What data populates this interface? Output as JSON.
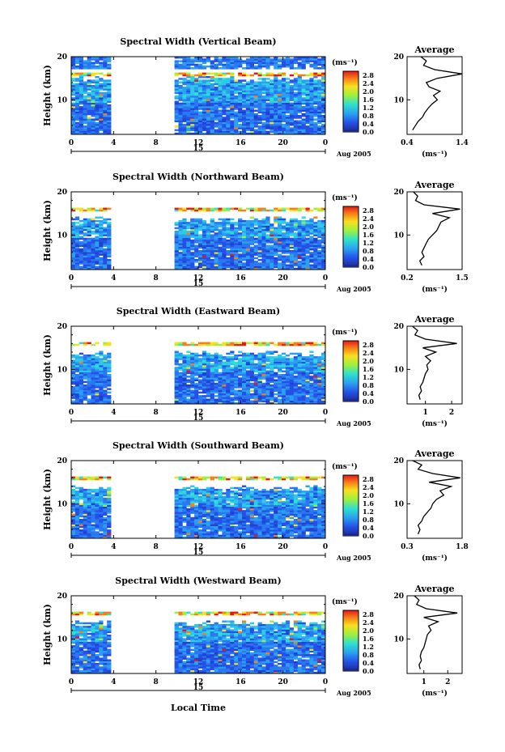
{
  "figure": {
    "bottom_label": "Local Time",
    "day_label": "15",
    "month_label": "Aug 2005",
    "colorbar_unit": "(ms⁻¹)",
    "avg_title": "Average",
    "avg_xlabel": "(ms⁻¹)",
    "ylabel": "Height (km)"
  },
  "chart_data": [
    {
      "type": "heatmap",
      "title": "Spectral Width (Vertical Beam)",
      "xlabel": "Local Time",
      "ylabel": "Height (km)",
      "xlim": [
        0,
        24
      ],
      "x_ticks": [
        "0",
        "4",
        "8",
        "12",
        "16",
        "20",
        "0"
      ],
      "ylim": [
        2,
        20
      ],
      "y_ticks": [
        "10",
        "20"
      ],
      "data_gap_hours": [
        4,
        9.5
      ],
      "colorbar": {
        "unit": "(ms⁻¹)",
        "range": [
          0,
          3.0
        ],
        "ticks": [
          "0.0",
          "0.4",
          "0.8",
          "1.2",
          "1.6",
          "2.0",
          "2.4",
          "2.8"
        ]
      },
      "average_profile": {
        "title": "Average",
        "xlabel": "(ms⁻¹)",
        "x_ticks": [
          "0.4",
          "1.4"
        ],
        "xlim": [
          0.4,
          1.4
        ],
        "heights": [
          3,
          4,
          5,
          6,
          7,
          8,
          9,
          10,
          11,
          12,
          13,
          14,
          15,
          16,
          17,
          18,
          19,
          20
        ],
        "values": [
          0.5,
          0.55,
          0.6,
          0.68,
          0.72,
          0.78,
          0.85,
          0.95,
          0.88,
          1.0,
          0.8,
          0.75,
          0.95,
          1.4,
          0.9,
          0.7,
          0.75,
          0.65
        ]
      }
    },
    {
      "type": "heatmap",
      "title": "Spectral Width (Northward Beam)",
      "xlabel": "Local Time",
      "ylabel": "Height (km)",
      "xlim": [
        0,
        24
      ],
      "x_ticks": [
        "0",
        "4",
        "8",
        "12",
        "16",
        "20",
        "0"
      ],
      "ylim": [
        2,
        20
      ],
      "y_ticks": [
        "10",
        "20"
      ],
      "data_gap_hours": [
        4,
        9.5
      ],
      "colorbar": {
        "unit": "(ms⁻¹)",
        "range": [
          0,
          3.0
        ],
        "ticks": [
          "0.0",
          "0.4",
          "0.8",
          "1.2",
          "1.6",
          "2.0",
          "2.4",
          "2.8"
        ]
      },
      "average_profile": {
        "title": "Average",
        "xlabel": "(ms⁻¹)",
        "x_ticks": [
          "0.2",
          "1.5"
        ],
        "xlim": [
          0.2,
          1.5
        ],
        "heights": [
          3,
          4,
          5,
          6,
          7,
          8,
          9,
          10,
          11,
          12,
          13,
          14,
          15,
          16,
          17,
          18,
          19,
          20
        ],
        "values": [
          0.55,
          0.5,
          0.6,
          0.55,
          0.6,
          0.65,
          0.7,
          0.8,
          0.9,
          0.95,
          1.0,
          1.2,
          0.8,
          1.45,
          0.6,
          0.4,
          0.45,
          0.35
        ]
      }
    },
    {
      "type": "heatmap",
      "title": "Spectral Width (Eastward Beam)",
      "xlabel": "Local Time",
      "ylabel": "Height (km)",
      "xlim": [
        0,
        24
      ],
      "x_ticks": [
        "0",
        "4",
        "8",
        "12",
        "16",
        "20",
        "0"
      ],
      "ylim": [
        2,
        20
      ],
      "y_ticks": [
        "10",
        "20"
      ],
      "data_gap_hours": [
        4,
        9.5
      ],
      "colorbar": {
        "unit": "(ms⁻¹)",
        "range": [
          0,
          3.0
        ],
        "ticks": [
          "0.0",
          "0.4",
          "0.8",
          "1.2",
          "1.6",
          "2.0",
          "2.4",
          "2.8"
        ]
      },
      "average_profile": {
        "title": "Average",
        "xlabel": "(ms⁻¹)",
        "x_ticks": [
          "1",
          "2"
        ],
        "xlim": [
          0.3,
          2.4
        ],
        "heights": [
          3,
          4,
          5,
          6,
          7,
          8,
          9,
          10,
          11,
          12,
          13,
          14,
          15,
          16,
          17,
          18,
          19,
          20
        ],
        "values": [
          0.8,
          0.75,
          0.85,
          0.8,
          0.9,
          0.95,
          1.0,
          1.1,
          1.05,
          1.2,
          1.0,
          1.4,
          0.9,
          2.2,
          1.0,
          0.6,
          0.7,
          0.5
        ]
      }
    },
    {
      "type": "heatmap",
      "title": "Spectral Width (Southward Beam)",
      "xlabel": "Local Time",
      "ylabel": "Height (km)",
      "xlim": [
        0,
        24
      ],
      "x_ticks": [
        "0",
        "4",
        "8",
        "12",
        "16",
        "20",
        "0"
      ],
      "ylim": [
        2,
        20
      ],
      "y_ticks": [
        "10",
        "20"
      ],
      "data_gap_hours": [
        4,
        9.5
      ],
      "colorbar": {
        "unit": "(ms⁻¹)",
        "range": [
          0,
          3.0
        ],
        "ticks": [
          "0.0",
          "0.4",
          "0.8",
          "1.2",
          "1.6",
          "2.0",
          "2.4",
          "2.8"
        ]
      },
      "average_profile": {
        "title": "Average",
        "xlabel": "(ms⁻¹)",
        "x_ticks": [
          "0.3",
          "1.8"
        ],
        "xlim": [
          0.3,
          1.8
        ],
        "heights": [
          3,
          4,
          5,
          6,
          7,
          8,
          9,
          10,
          11,
          12,
          13,
          14,
          15,
          16,
          17,
          18,
          19,
          20
        ],
        "values": [
          0.6,
          0.65,
          0.6,
          0.7,
          0.75,
          0.85,
          0.95,
          1.0,
          1.1,
          1.3,
          1.2,
          1.5,
          0.9,
          1.75,
          1.0,
          0.6,
          0.7,
          0.45
        ]
      }
    },
    {
      "type": "heatmap",
      "title": "Spectral Width (Westward Beam)",
      "xlabel": "Local Time",
      "ylabel": "Height (km)",
      "xlim": [
        0,
        24
      ],
      "x_ticks": [
        "0",
        "4",
        "8",
        "12",
        "16",
        "20",
        "0"
      ],
      "ylim": [
        2,
        20
      ],
      "y_ticks": [
        "10",
        "20"
      ],
      "data_gap_hours": [
        4,
        9.5
      ],
      "colorbar": {
        "unit": "(ms⁻¹)",
        "range": [
          0,
          3.0
        ],
        "ticks": [
          "0.0",
          "0.4",
          "0.8",
          "1.2",
          "1.6",
          "2.0",
          "2.4",
          "2.8"
        ]
      },
      "average_profile": {
        "title": "Average",
        "xlabel": "(ms⁻¹)",
        "x_ticks": [
          "1",
          "2"
        ],
        "xlim": [
          0.3,
          2.6
        ],
        "heights": [
          3,
          4,
          5,
          6,
          7,
          8,
          9,
          10,
          11,
          12,
          13,
          14,
          15,
          16,
          17,
          18,
          19,
          20
        ],
        "values": [
          0.85,
          0.8,
          0.9,
          0.85,
          0.9,
          1.0,
          1.05,
          1.1,
          1.15,
          1.3,
          1.2,
          1.6,
          1.0,
          2.4,
          1.1,
          0.7,
          0.8,
          0.6
        ]
      }
    }
  ]
}
